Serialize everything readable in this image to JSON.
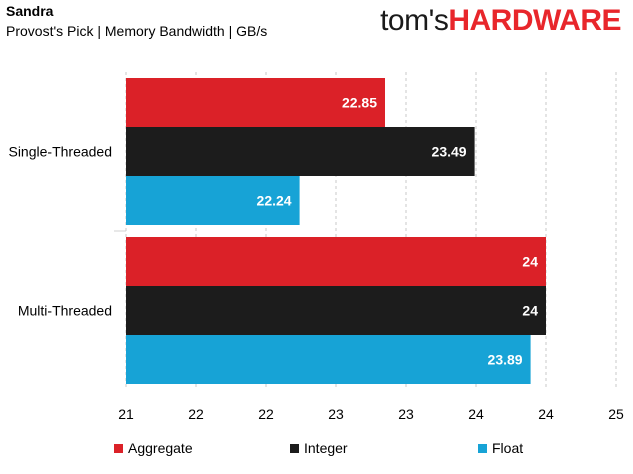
{
  "header": {
    "title": "Sandra",
    "subtitle": "Provost's Pick | Memory Bandwidth | GB/s"
  },
  "brand": {
    "prefix": "tom's",
    "suffix": "HARDWARE",
    "color": "#e8262b"
  },
  "chart_data": {
    "type": "bar",
    "orientation": "horizontal",
    "title": "Sandra",
    "subtitle": "Provost's Pick | Memory Bandwidth | GB/s",
    "categories": [
      "Single-Threaded",
      "Multi-Threaded"
    ],
    "series": [
      {
        "name": "Aggregate",
        "values": [
          22.85,
          24
        ],
        "labels": [
          "22.85",
          "24"
        ],
        "color": "#db2128"
      },
      {
        "name": "Integer",
        "values": [
          23.49,
          24
        ],
        "labels": [
          "23.49",
          "24"
        ],
        "color": "#1c1c1c"
      },
      {
        "name": "Float",
        "values": [
          22.24,
          23.89
        ],
        "labels": [
          "22.24",
          "23.89"
        ],
        "color": "#17a3d6"
      }
    ],
    "xlim": [
      21,
      24.5
    ],
    "tick_values": [
      21,
      21.5,
      22,
      22.5,
      23,
      23.5,
      24,
      24.5
    ],
    "tick_labels": [
      "21",
      "22",
      "22",
      "23",
      "23",
      "24",
      "24",
      "25"
    ],
    "grid": "vertical dashed",
    "legend": "bottom"
  }
}
